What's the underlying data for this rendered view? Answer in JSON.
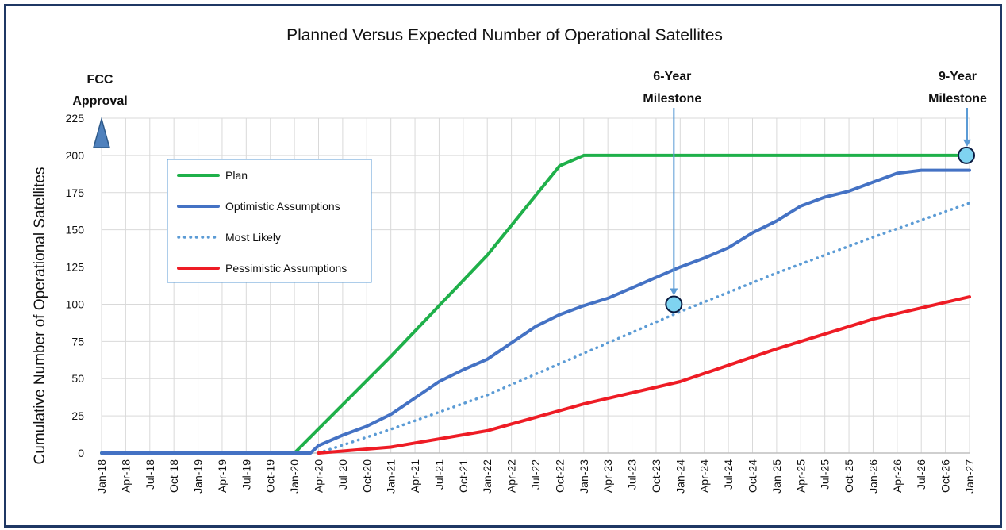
{
  "chart_data": {
    "type": "line",
    "title": "Planned Versus Expected Number of Operational Satellites",
    "xlabel": "",
    "ylabel": "Cumulative Number of Operational Satellites",
    "ylim": [
      0,
      225
    ],
    "yticks": [
      0,
      25,
      50,
      75,
      100,
      125,
      150,
      175,
      200,
      225
    ],
    "xticks": [
      "Jan-18",
      "Apr-18",
      "Jul-18",
      "Oct-18",
      "Jan-19",
      "Apr-19",
      "Jul-19",
      "Oct-19",
      "Jan-20",
      "Apr-20",
      "Jul-20",
      "Oct-20",
      "Jan-21",
      "Apr-21",
      "Jul-21",
      "Oct-21",
      "Jan-22",
      "Apr-22",
      "Jul-22",
      "Oct-22",
      "Jan-23",
      "Apr-23",
      "Jul-23",
      "Oct-23",
      "Jan-24",
      "Apr-24",
      "Jul-24",
      "Oct-24",
      "Jan-25",
      "Apr-25",
      "Jul-25",
      "Oct-25",
      "Jan-26",
      "Apr-26",
      "Jul-26",
      "Oct-26",
      "Jan-27"
    ],
    "grid": true,
    "legend_position": "upper-left",
    "series": [
      {
        "name": "Plan",
        "color": "#1fb04a",
        "style": "solid",
        "points": [
          [
            "Jan-18",
            0
          ],
          [
            "Jan-20",
            0
          ],
          [
            "Jan-21",
            65
          ],
          [
            "Jan-22",
            133
          ],
          [
            "Oct-22",
            193
          ],
          [
            "Jan-23",
            200
          ],
          [
            "Jan-27",
            200
          ]
        ]
      },
      {
        "name": "Optimistic Assumptions",
        "color": "#4472c4",
        "style": "solid",
        "points": [
          [
            "Jan-18",
            0
          ],
          [
            "Mar-20",
            0
          ],
          [
            "Apr-20",
            5
          ],
          [
            "Jul-20",
            12
          ],
          [
            "Oct-20",
            18
          ],
          [
            "Jan-21",
            26
          ],
          [
            "Apr-21",
            37
          ],
          [
            "Jul-21",
            48
          ],
          [
            "Oct-21",
            56
          ],
          [
            "Jan-22",
            63
          ],
          [
            "Apr-22",
            74
          ],
          [
            "Jul-22",
            85
          ],
          [
            "Oct-22",
            93
          ],
          [
            "Jan-23",
            99
          ],
          [
            "Apr-23",
            104
          ],
          [
            "Jul-23",
            111
          ],
          [
            "Oct-23",
            118
          ],
          [
            "Jan-24",
            125
          ],
          [
            "Apr-24",
            131
          ],
          [
            "Jul-24",
            138
          ],
          [
            "Oct-24",
            148
          ],
          [
            "Jan-25",
            156
          ],
          [
            "Apr-25",
            166
          ],
          [
            "Jul-25",
            172
          ],
          [
            "Oct-25",
            176
          ],
          [
            "Jan-26",
            182
          ],
          [
            "Apr-26",
            188
          ],
          [
            "Jul-26",
            190
          ],
          [
            "Oct-26",
            190
          ],
          [
            "Jan-27",
            190
          ]
        ]
      },
      {
        "name": "Most Likely",
        "color": "#5b9bd5",
        "style": "dotted",
        "points": [
          [
            "Apr-20",
            0
          ],
          [
            "Jan-21",
            16
          ],
          [
            "Jan-22",
            39
          ],
          [
            "Jan-23",
            67
          ],
          [
            "Jan-24",
            95
          ],
          [
            "Jan-25",
            121
          ],
          [
            "Jan-26",
            145
          ],
          [
            "Jan-27",
            168
          ]
        ]
      },
      {
        "name": "Pessimistic Assumptions",
        "color": "#ee1c25",
        "style": "solid",
        "points": [
          [
            "Apr-20",
            0
          ],
          [
            "Jan-21",
            4
          ],
          [
            "Jan-22",
            15
          ],
          [
            "Jan-23",
            33
          ],
          [
            "Jan-24",
            48
          ],
          [
            "Jan-25",
            70
          ],
          [
            "Jan-26",
            90
          ],
          [
            "Jan-27",
            105
          ]
        ]
      }
    ],
    "annotations": [
      {
        "text": "FCC Approval",
        "at": "Jan-18",
        "marker": "triangle"
      },
      {
        "text": "6-Year Milestone",
        "at": "Jan-24",
        "value": 100
      },
      {
        "text": "9-Year Milestone",
        "at": "Jan-27",
        "value": 200
      }
    ],
    "colors": {
      "axis": "#bfbfbf",
      "grid": "#d9d9d9",
      "frame": "#1f3864",
      "marker_fill": "#7fd3f0",
      "arrow": "#5b9bd5"
    }
  }
}
